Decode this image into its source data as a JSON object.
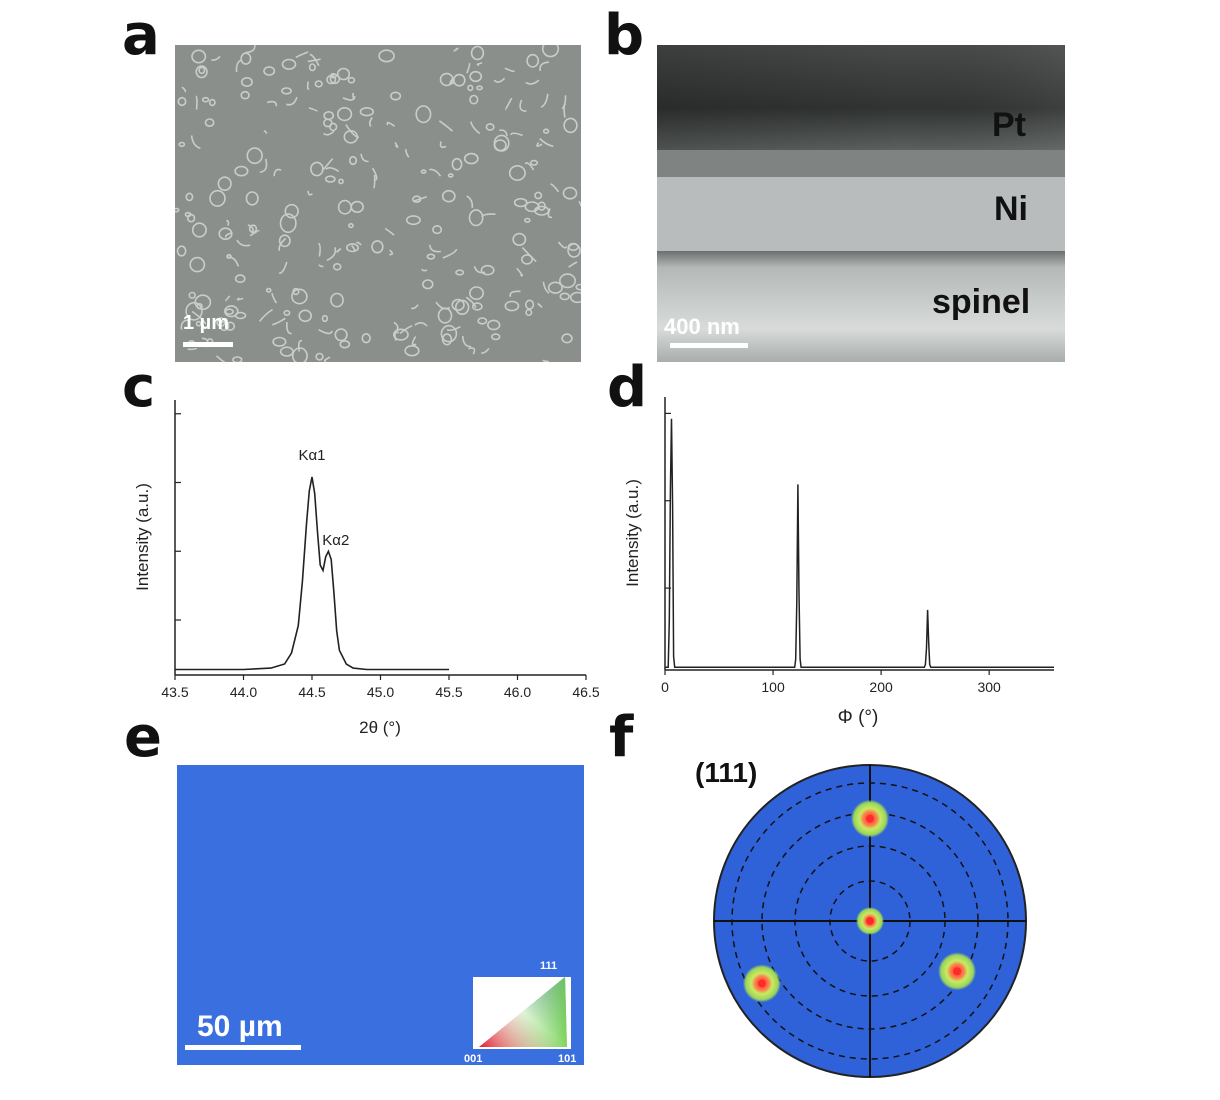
{
  "panel_labels": {
    "a": "a",
    "b": "b",
    "c": "c",
    "d": "d",
    "e": "e",
    "f": "f"
  },
  "panel_a": {
    "scalebar": "1 µm",
    "colors": {
      "background": "#8b8f8c",
      "feature": "#c9cdca"
    }
  },
  "panel_b": {
    "layers": [
      "Pt",
      "Ni",
      "spinel"
    ],
    "scalebar": "400 nm",
    "colors": {
      "pt": "#3a3d3c",
      "ni": "#b8bcbc",
      "spinel": "#cfd3d2"
    }
  },
  "panel_e": {
    "scalebar": "50 µm",
    "ipf_labels": [
      "111",
      "001",
      "101"
    ],
    "colors": {
      "map": "#3a6fe0",
      "text": "#ffffff"
    }
  },
  "panel_f": {
    "title": "(111)",
    "colors": {
      "disk": "#2f62d8",
      "spot_outer": "#b6e07a",
      "spot_inner": "#ff3b3b"
    },
    "poles": [
      {
        "name": "top",
        "theta_deg": 59,
        "phi_deg": 90
      },
      {
        "name": "center",
        "theta_deg": 0,
        "phi_deg": 0
      },
      {
        "name": "lower-left",
        "theta_deg": 72,
        "phi_deg": 210
      },
      {
        "name": "lower-right",
        "theta_deg": 58,
        "phi_deg": 330
      }
    ]
  },
  "chart_data": [
    {
      "type": "line",
      "panel": "c",
      "xlabel": "2θ (°)",
      "ylabel": "Intensity (a.u.)",
      "xlim": [
        43.5,
        46.5
      ],
      "ylim": [
        0,
        1
      ],
      "xticks": [
        "43.5",
        "44.0",
        "44.5",
        "45.0",
        "45.5",
        "46.0",
        "46.5"
      ],
      "annotations": [
        {
          "text": "Kα1",
          "x": 44.5,
          "y": 0.76
        },
        {
          "text": "Kα2",
          "x": 44.63,
          "y": 0.48
        }
      ],
      "x": [
        43.5,
        44.0,
        44.2,
        44.3,
        44.35,
        44.4,
        44.43,
        44.46,
        44.48,
        44.5,
        44.52,
        44.54,
        44.56,
        44.58,
        44.6,
        44.62,
        44.64,
        44.66,
        44.68,
        44.7,
        44.75,
        44.8,
        44.9,
        45.0,
        45.5
      ],
      "y": [
        0.02,
        0.02,
        0.025,
        0.04,
        0.08,
        0.18,
        0.34,
        0.55,
        0.67,
        0.72,
        0.66,
        0.52,
        0.4,
        0.38,
        0.43,
        0.45,
        0.42,
        0.3,
        0.16,
        0.09,
        0.04,
        0.025,
        0.02,
        0.02,
        0.02
      ]
    },
    {
      "type": "line",
      "panel": "d",
      "xlabel": "Φ (°)",
      "ylabel": "Intensity (a.u.)",
      "xlim": [
        0,
        360
      ],
      "ylim": [
        0,
        1
      ],
      "xticks": [
        "0",
        "100",
        "200",
        "300"
      ],
      "x": [
        0,
        3,
        4,
        5,
        6,
        7,
        8,
        9,
        120,
        121,
        122,
        123,
        124,
        125,
        126,
        127,
        240,
        241,
        242,
        243,
        244,
        245,
        246,
        247,
        360
      ],
      "y": [
        0.01,
        0.01,
        0.18,
        0.66,
        0.92,
        0.6,
        0.05,
        0.01,
        0.01,
        0.04,
        0.25,
        0.68,
        0.28,
        0.04,
        0.01,
        0.01,
        0.01,
        0.02,
        0.08,
        0.22,
        0.1,
        0.02,
        0.01,
        0.01,
        0.01
      ]
    }
  ]
}
